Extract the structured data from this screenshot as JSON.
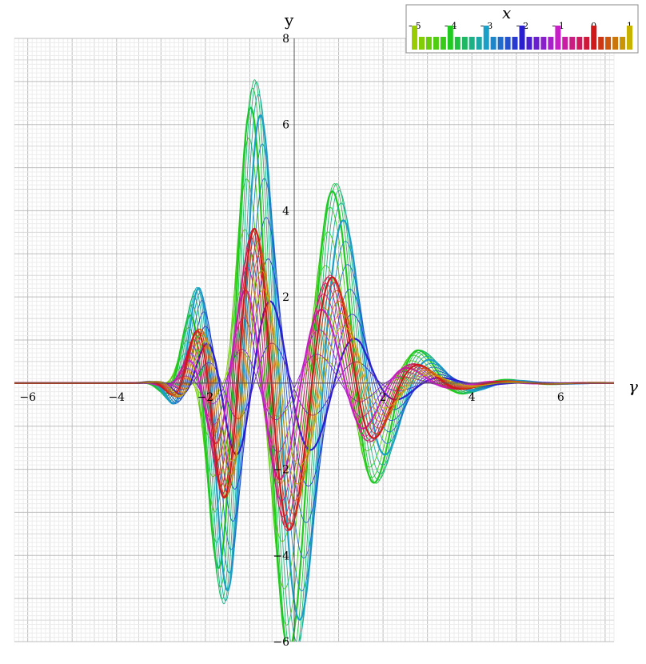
{
  "chart_data": {
    "type": "line",
    "title": "",
    "xlabel": "γ",
    "ylabel": "y",
    "xlim": [
      -6.3,
      7.2
    ],
    "ylim": [
      -6,
      8
    ],
    "x_ticks": [
      "−6",
      "−4",
      "−2",
      "2",
      "4",
      "6"
    ],
    "y_ticks": [
      "−6",
      "−4",
      "−2",
      "2",
      "4",
      "6",
      "8"
    ],
    "grid": true,
    "legend": {
      "type": "colorbar",
      "placement": "top-right",
      "title": "x",
      "range": [
        -5,
        1
      ],
      "ticks": [
        "−5",
        "−4",
        "−3",
        "−2",
        "−1",
        "0",
        "1"
      ]
    },
    "series_family": {
      "parameter": "x",
      "x_values": [
        -5.0,
        -4.8,
        -4.6,
        -4.4,
        -4.2,
        -4.0,
        -3.8,
        -3.6,
        -3.4,
        -3.2,
        -3.0,
        -2.8,
        -2.6,
        -2.4,
        -2.2,
        -2.0,
        -1.8,
        -1.6,
        -1.4,
        -1.2,
        -1.0,
        -0.8,
        -0.6,
        -0.4,
        -0.2,
        0.0,
        0.2,
        0.4,
        0.6,
        0.8,
        1.0
      ],
      "highlighted_x": [
        -4,
        -3,
        -2,
        -1,
        0
      ],
      "key_points": [
        {
          "x": -5,
          "color": "#9acd00"
        },
        {
          "x": -4,
          "color": "#1ecb1e"
        },
        {
          "x": -3,
          "color": "#1a9fc8"
        },
        {
          "x": -2,
          "color": "#2a1fd0"
        },
        {
          "x": -1,
          "color": "#c81ec8"
        },
        {
          "x": 0,
          "color": "#d01818"
        },
        {
          "x": 1,
          "color": "#c8b400"
        }
      ]
    }
  }
}
